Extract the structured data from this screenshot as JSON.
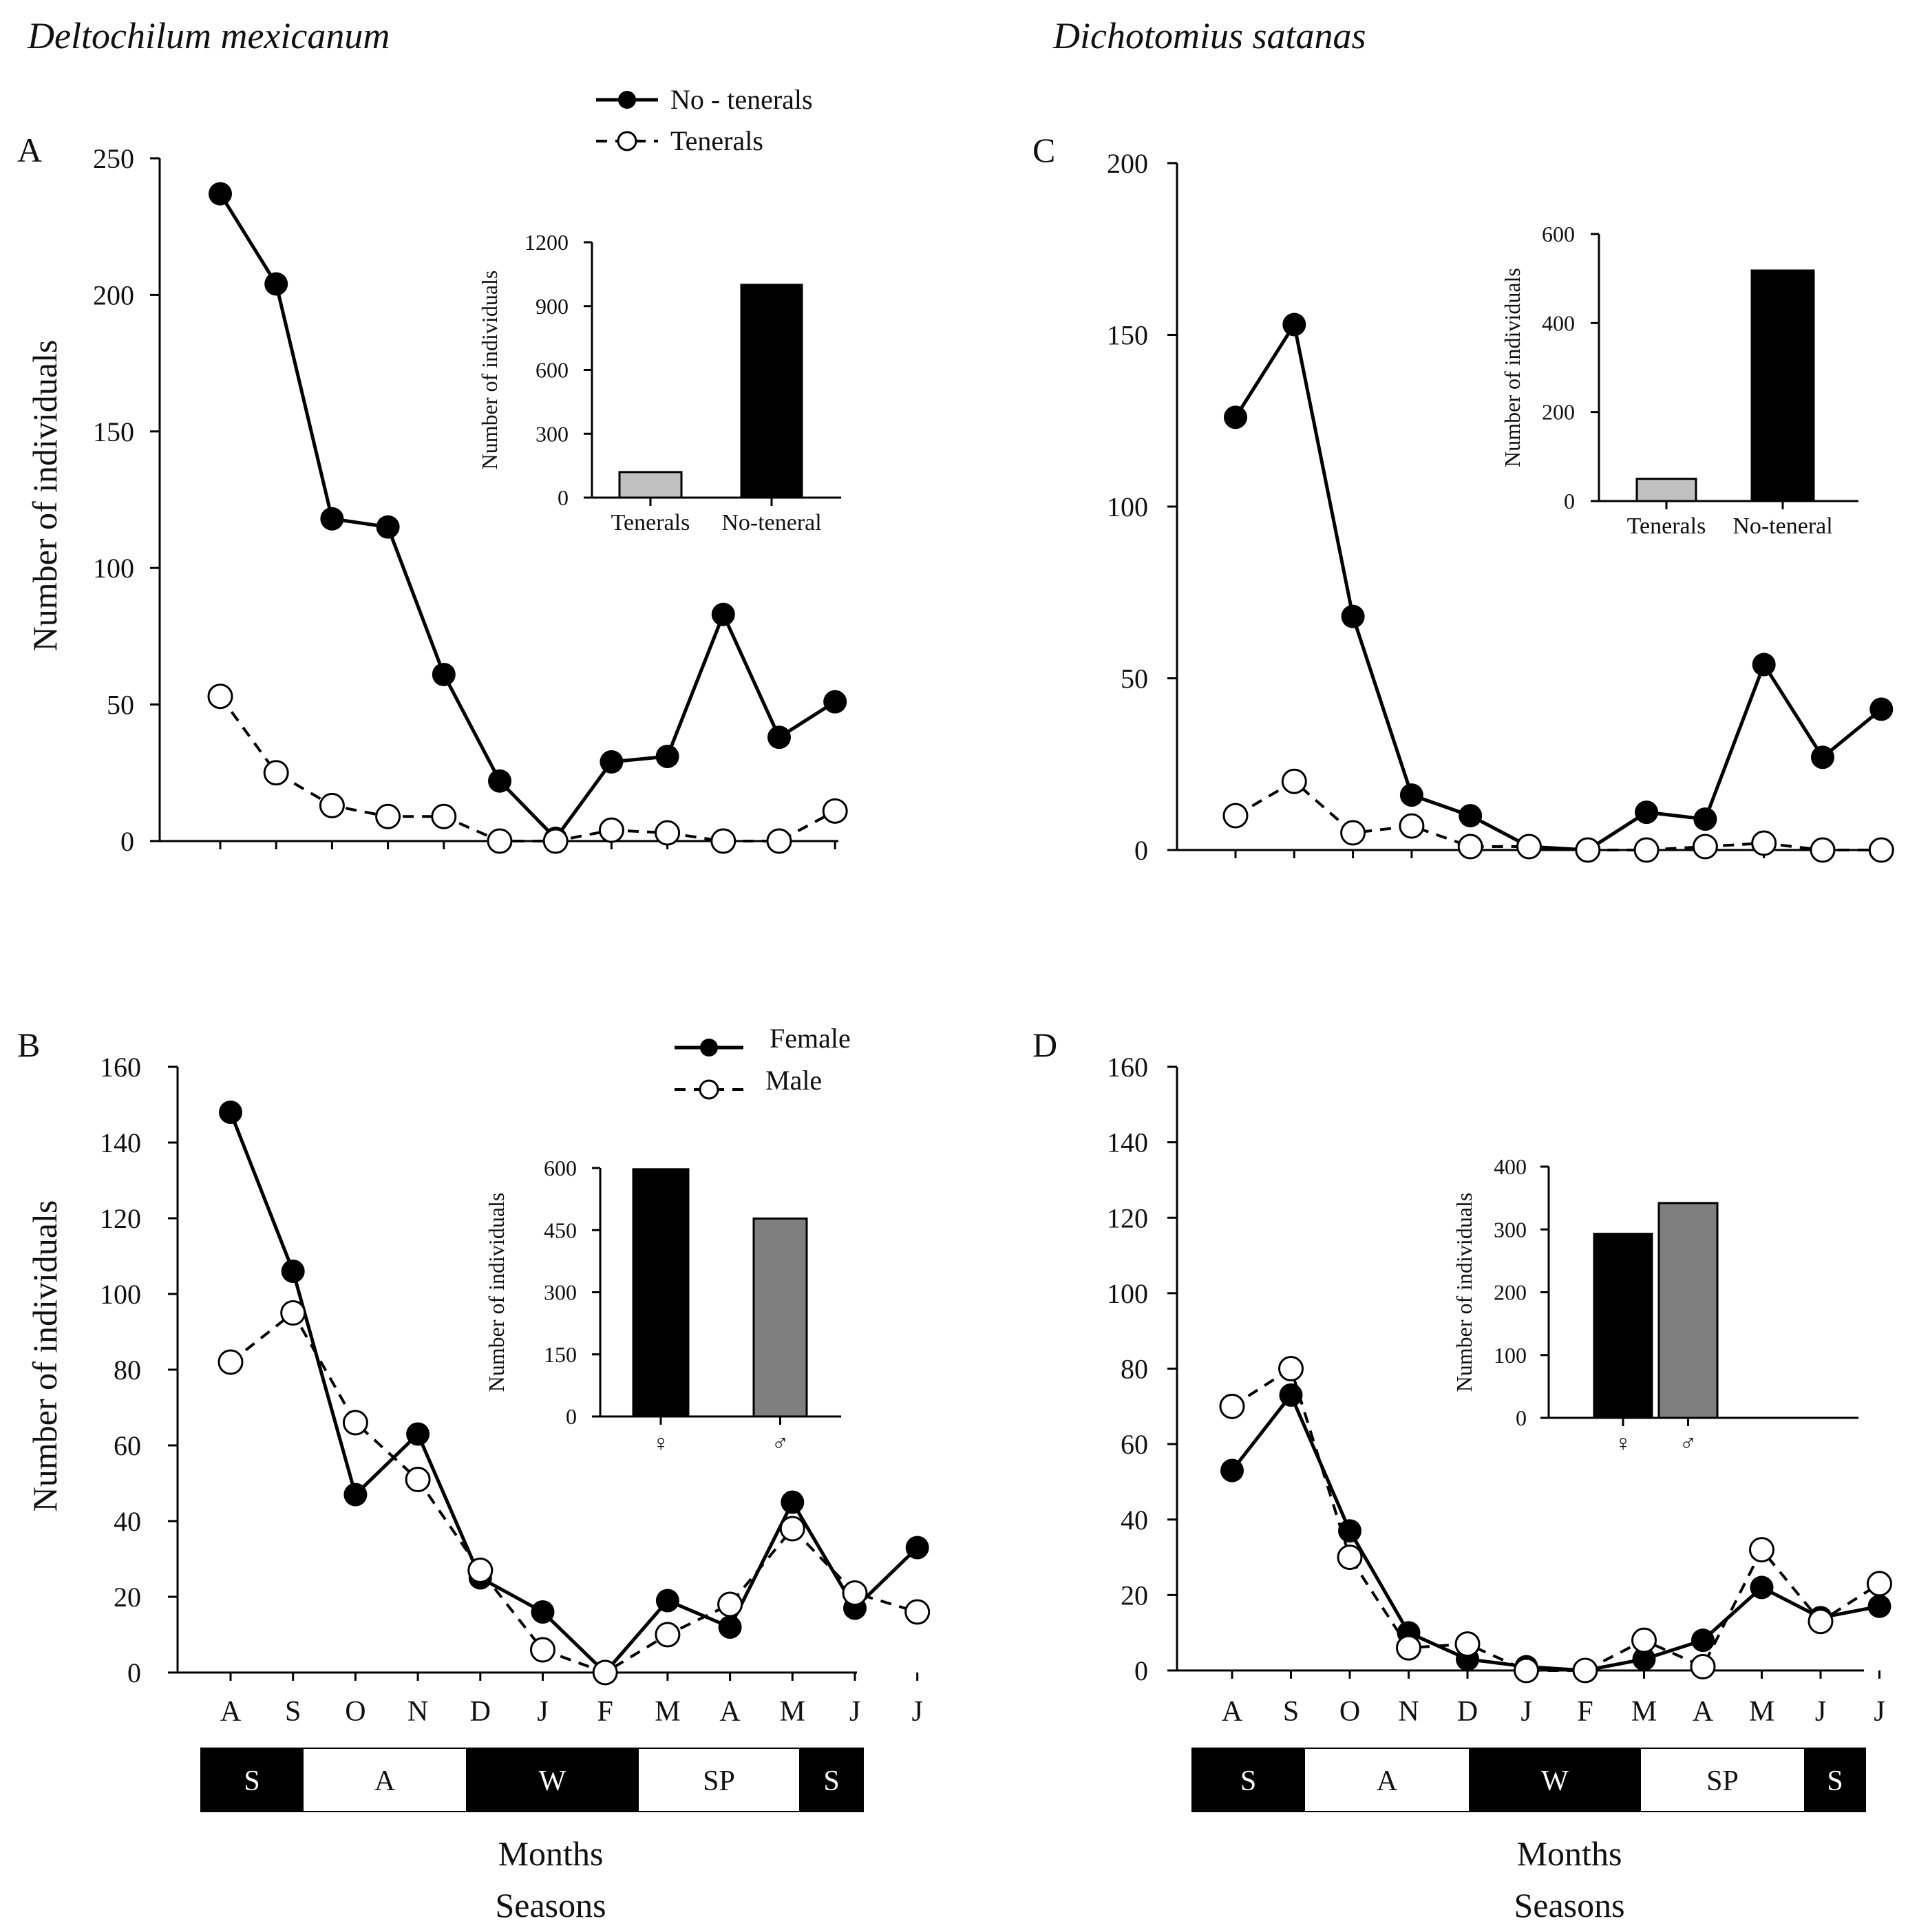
{
  "months": [
    "A",
    "S",
    "O",
    "N",
    "D",
    "J",
    "F",
    "M",
    "A",
    "M",
    "J",
    "J"
  ],
  "seasons": [
    {
      "label": "S",
      "fill": "#000000",
      "text_color": "#ffffff"
    },
    {
      "label": "A",
      "fill": "#ffffff",
      "text_color": "#111111"
    },
    {
      "label": "W",
      "fill": "#000000",
      "text_color": "#ffffff"
    },
    {
      "label": "SP",
      "fill": "#ffffff",
      "text_color": "#111111"
    },
    {
      "label": "S",
      "fill": "#000000",
      "text_color": "#ffffff"
    }
  ],
  "species_left": "Deltochilum mexicanum",
  "species_right": "Dichotomius  satanas",
  "xlabel": "Months",
  "xlabel2": "Seasons",
  "legend_top": {
    "solid": "No - tenerals",
    "dashed": "Tenerals"
  },
  "legend_bottom": {
    "solid": "Female",
    "dashed": "Male"
  },
  "colors": {
    "black": "#000000",
    "light_gray": "#c0c0c0",
    "mid_gray": "#7f7f7f",
    "white": "#ffffff"
  },
  "chart_data": [
    {
      "id": "A",
      "type": "line",
      "panel_label": "A",
      "ylabel": "Number of individuals",
      "ylim": [
        0,
        250
      ],
      "yticks": [
        0,
        50,
        100,
        150,
        200,
        250
      ],
      "series": [
        {
          "name": "No - tenerals",
          "style": "solid",
          "values": [
            237,
            204,
            118,
            115,
            61,
            22,
            1,
            29,
            31,
            83,
            38,
            51
          ]
        },
        {
          "name": "Tenerals",
          "style": "dashed",
          "values": [
            53,
            25,
            13,
            9,
            9,
            0,
            0,
            4,
            3,
            0,
            0,
            11
          ]
        }
      ],
      "inset": {
        "type": "bar",
        "ylabel": "Number of individuals",
        "ylim": [
          0,
          1200
        ],
        "yticks": [
          0,
          300,
          600,
          900,
          1200
        ],
        "categories": [
          "Tenerals",
          "No-teneral"
        ],
        "values": [
          120,
          1000
        ],
        "bar_colors": [
          "#c0c0c0",
          "#000000"
        ]
      }
    },
    {
      "id": "B",
      "type": "line",
      "panel_label": "B",
      "ylabel": "Number of individuals",
      "ylim": [
        0,
        160
      ],
      "yticks": [
        0,
        20,
        40,
        60,
        80,
        100,
        120,
        140,
        160
      ],
      "series": [
        {
          "name": "Female",
          "style": "solid",
          "values": [
            148,
            106,
            47,
            63,
            25,
            16,
            0,
            19,
            12,
            45,
            17,
            33
          ]
        },
        {
          "name": "Male",
          "style": "dashed",
          "values": [
            82,
            95,
            66,
            51,
            27,
            6,
            0,
            10,
            18,
            38,
            21,
            16
          ]
        }
      ],
      "inset": {
        "type": "bar",
        "ylabel": "Number of individuals",
        "ylim": [
          0,
          600
        ],
        "yticks": [
          0,
          150,
          300,
          450,
          600
        ],
        "categories": [
          "♀",
          "♂"
        ],
        "values": [
          597,
          478
        ],
        "bar_colors": [
          "#000000",
          "#7f7f7f"
        ]
      }
    },
    {
      "id": "C",
      "type": "line",
      "panel_label": "C",
      "ylabel": "",
      "ylim": [
        0,
        200
      ],
      "yticks": [
        0,
        50,
        100,
        150,
        200
      ],
      "series": [
        {
          "name": "No - tenerals",
          "style": "solid",
          "values": [
            126,
            153,
            68,
            16,
            10,
            1,
            0,
            11,
            9,
            54,
            27,
            41
          ]
        },
        {
          "name": "Tenerals",
          "style": "dashed",
          "values": [
            10,
            20,
            5,
            7,
            1,
            1,
            0,
            0,
            1,
            2,
            0,
            0
          ]
        }
      ],
      "inset": {
        "type": "bar",
        "ylabel": "Number of individuals",
        "ylim": [
          0,
          600
        ],
        "yticks": [
          0,
          200,
          400,
          600
        ],
        "categories": [
          "Tenerals",
          "No-teneral"
        ],
        "values": [
          50,
          518
        ],
        "bar_colors": [
          "#c0c0c0",
          "#000000"
        ]
      }
    },
    {
      "id": "D",
      "type": "line",
      "panel_label": "D",
      "ylabel": "",
      "ylim": [
        0,
        160
      ],
      "yticks": [
        0,
        20,
        40,
        60,
        80,
        100,
        120,
        140,
        160
      ],
      "series": [
        {
          "name": "Female",
          "style": "solid",
          "values": [
            53,
            73,
            37,
            10,
            3,
            1,
            0,
            3,
            8,
            22,
            14,
            17
          ]
        },
        {
          "name": "Male",
          "style": "dashed",
          "values": [
            70,
            80,
            30,
            6,
            7,
            0,
            0,
            8,
            1,
            32,
            13,
            23
          ]
        }
      ],
      "inset": {
        "type": "bar",
        "ylabel": "Number of individuals",
        "ylim": [
          0,
          400
        ],
        "yticks": [
          0,
          100,
          200,
          300,
          400
        ],
        "categories": [
          "♀",
          "♂"
        ],
        "values": [
          293,
          342
        ],
        "bar_colors": [
          "#000000",
          "#7f7f7f"
        ]
      }
    }
  ]
}
